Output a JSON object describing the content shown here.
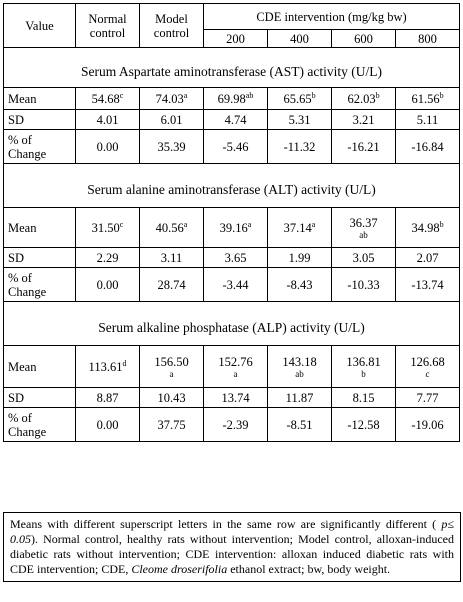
{
  "header": {
    "value": "Value",
    "normal_control": "Normal control",
    "model_control": "Model control",
    "cde": "CDE intervention (mg/kg bw)",
    "doses": [
      "200",
      "400",
      "600",
      "800"
    ]
  },
  "sections": [
    {
      "title": "Serum Aspartate aminotransferase (AST) activity (U/L)",
      "rows": [
        {
          "label": "Mean",
          "cells": [
            {
              "v": "54.68",
              "s": "c"
            },
            {
              "v": "74.03",
              "s": "a"
            },
            {
              "v": "69.98",
              "s": "ab"
            },
            {
              "v": "65.65",
              "s": "b"
            },
            {
              "v": "62.03",
              "s": "b"
            },
            {
              "v": "61.56",
              "s": "b"
            }
          ]
        },
        {
          "label": "SD",
          "cells": [
            {
              "v": "4.01"
            },
            {
              "v": "6.01"
            },
            {
              "v": "4.74"
            },
            {
              "v": "5.31"
            },
            {
              "v": "3.21"
            },
            {
              "v": "5.11"
            }
          ]
        },
        {
          "label": "% of Change",
          "cells": [
            {
              "v": "0.00"
            },
            {
              "v": "35.39"
            },
            {
              "v": "-5.46"
            },
            {
              "v": "-11.32"
            },
            {
              "v": "-16.21"
            },
            {
              "v": "-16.84"
            }
          ]
        }
      ]
    },
    {
      "title": "Serum alanine aminotransferase (ALT) activity (U/L)",
      "rows": [
        {
          "label": "Mean",
          "cells": [
            {
              "v": "31.50",
              "s": "c"
            },
            {
              "v": "40.56",
              "s": "a"
            },
            {
              "v": "39.16",
              "s": "a"
            },
            {
              "v": "37.14",
              "s": "a"
            },
            {
              "v": "36.37",
              "b": "ab"
            },
            {
              "v": "34.98",
              "s": "b"
            }
          ]
        },
        {
          "label": "SD",
          "cells": [
            {
              "v": "2.29"
            },
            {
              "v": "3.11"
            },
            {
              "v": "3.65"
            },
            {
              "v": "1.99"
            },
            {
              "v": "3.05"
            },
            {
              "v": "2.07"
            }
          ]
        },
        {
          "label": "% of Change",
          "cells": [
            {
              "v": "0.00"
            },
            {
              "v": "28.74"
            },
            {
              "v": "-3.44"
            },
            {
              "v": "-8.43"
            },
            {
              "v": "-10.33"
            },
            {
              "v": "-13.74"
            }
          ]
        }
      ]
    },
    {
      "title": "Serum alkaline phosphatase (ALP) activity (U/L)",
      "rows": [
        {
          "label": "Mean",
          "cells": [
            {
              "v": "113.61",
              "s": "d"
            },
            {
              "v": "156.50",
              "b": "a"
            },
            {
              "v": "152.76",
              "b": "a"
            },
            {
              "v": "143.18",
              "b": "ab"
            },
            {
              "v": "136.81",
              "b": "b"
            },
            {
              "v": "126.68",
              "b": "c"
            }
          ]
        },
        {
          "label": "SD",
          "cells": [
            {
              "v": "8.87"
            },
            {
              "v": "10.43"
            },
            {
              "v": "13.74"
            },
            {
              "v": "11.87"
            },
            {
              "v": "8.15"
            },
            {
              "v": "7.77"
            }
          ]
        },
        {
          "label": "% of Change",
          "cells": [
            {
              "v": "0.00"
            },
            {
              "v": "37.75"
            },
            {
              "v": "-2.39"
            },
            {
              "v": "-8.51"
            },
            {
              "v": "-12.58"
            },
            {
              "v": "-19.06"
            }
          ]
        }
      ]
    }
  ],
  "footnote": {
    "part1": "Means with different superscript letters in the same row are significantly different (",
    "p_expr": " p≤ 0.05",
    "part2": "). Normal control, healthy rats without intervention; Model control, alloxan-induced diabetic rats without intervention; CDE intervention: alloxan induced diabetic rats with CDE intervention; CDE, ",
    "species": "Cleome droserifolia",
    "part3": " ethanol extract; bw, body weight."
  }
}
